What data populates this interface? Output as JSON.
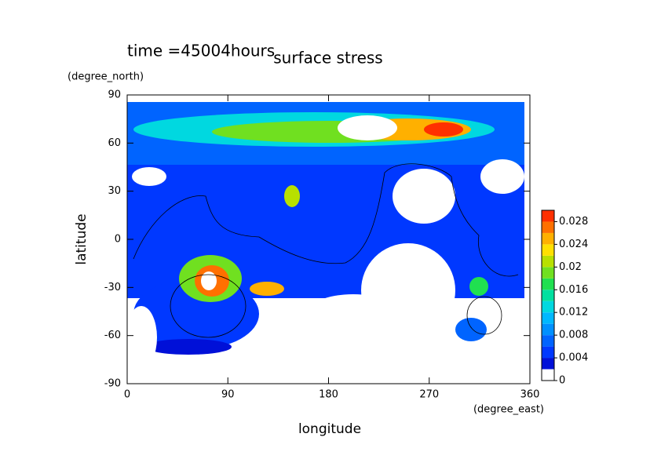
{
  "chart_data": {
    "type": "contour",
    "title": "time =45004hours",
    "subtitle": "surface stress",
    "x_label": "longitude",
    "x_unit": "(degree_east)",
    "y_label": "latitude",
    "y_unit": "(degree_north)",
    "xlim": [
      0,
      360
    ],
    "xticks": [
      0,
      90,
      180,
      270,
      360
    ],
    "ylim": [
      -90,
      90
    ],
    "yticks": [
      -90,
      -60,
      -30,
      0,
      30,
      60,
      90
    ],
    "colorbar": {
      "lim": [
        0,
        0.03
      ],
      "ticks": [
        0,
        0.004,
        0.008,
        0.012,
        0.016,
        0.02,
        0.024,
        0.028
      ],
      "colors": [
        "#ffffff",
        "#0010d8",
        "#0038ff",
        "#0064ff",
        "#0090ff",
        "#00b8ff",
        "#00d8e0",
        "#00e0a0",
        "#20e050",
        "#70e020",
        "#b8e000",
        "#ffe000",
        "#ffb000",
        "#ff7000",
        "#ff3000"
      ]
    }
  }
}
